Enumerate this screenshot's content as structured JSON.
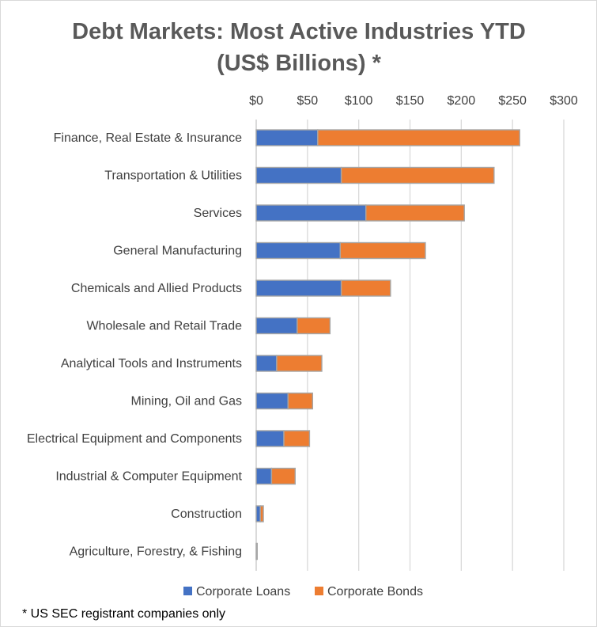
{
  "chart_data": {
    "type": "bar",
    "orientation": "horizontal",
    "stacked": true,
    "title_lines": [
      "Debt Markets: Most Active Industries YTD",
      "(US$ Billions) *"
    ],
    "categories": [
      "Finance, Real Estate & Insurance",
      "Transportation & Utilities",
      "Services",
      "General Manufacturing",
      "Chemicals and Allied Products",
      "Wholesale and Retail Trade",
      "Analytical Tools and Instruments",
      "Mining, Oil and Gas",
      "Electrical Equipment and Components",
      "Industrial & Computer Equipment",
      "Construction",
      "Agriculture, Forestry, & Fishing"
    ],
    "series": [
      {
        "name": "Corporate Loans",
        "color": "#4472c4",
        "values": [
          60,
          83,
          107,
          82,
          83,
          40,
          20,
          31,
          27,
          15,
          4,
          0.5
        ]
      },
      {
        "name": "Corporate Bonds",
        "color": "#ed7d31",
        "values": [
          197,
          149,
          96,
          83,
          48,
          32,
          44,
          24,
          25,
          23,
          3,
          0.5
        ]
      }
    ],
    "x_ticks": [
      "$0",
      "$50",
      "$100",
      "$150",
      "$200",
      "$250",
      "$300"
    ],
    "xlim": [
      0,
      300
    ],
    "x_axis_position": "top",
    "grid": true,
    "legend": "bottom",
    "footnote": "* US SEC registrant companies only"
  }
}
